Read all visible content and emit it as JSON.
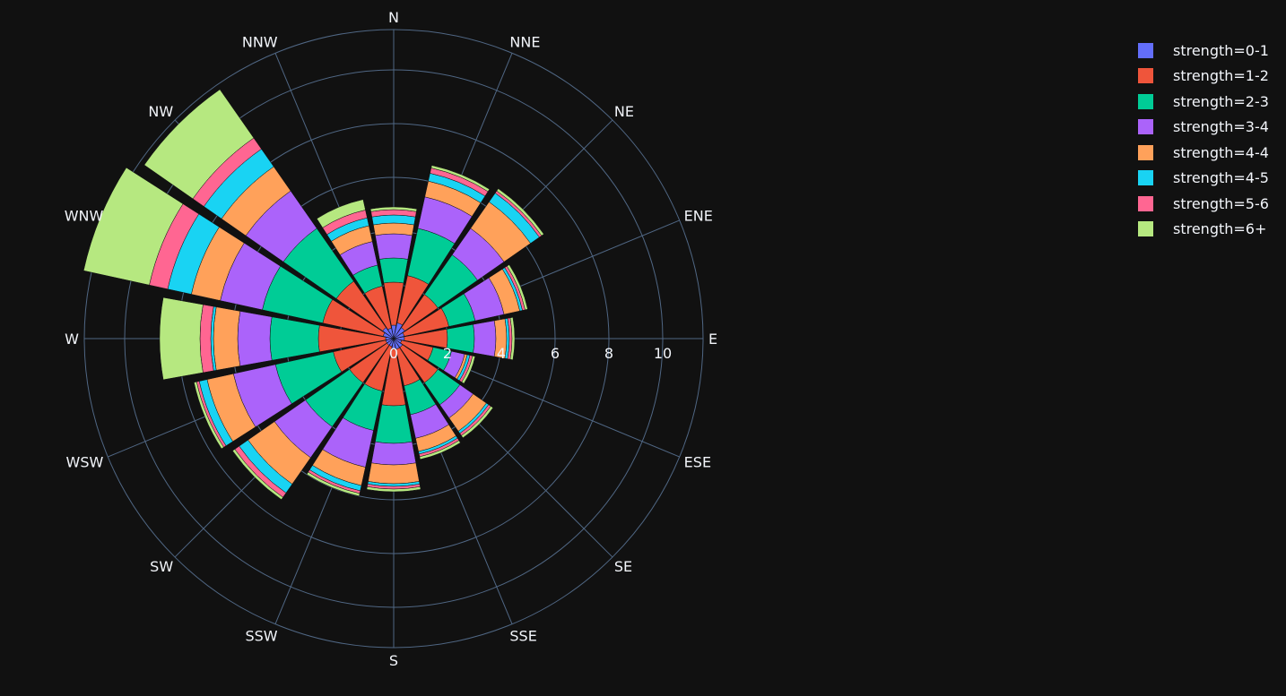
{
  "chart_data": {
    "type": "barpolar",
    "title": "",
    "directions": [
      "N",
      "NNE",
      "NE",
      "ENE",
      "E",
      "ESE",
      "SE",
      "SSE",
      "S",
      "SSW",
      "SW",
      "WSW",
      "W",
      "WNW",
      "NW",
      "NNW"
    ],
    "radial_ticks": [
      "0",
      "2",
      "4",
      "6",
      "8",
      "10"
    ],
    "radial_range": [
      0,
      11.5
    ],
    "grid": true,
    "legend_position": "top-right",
    "series": [
      {
        "name": "strength=0-1",
        "color": "#636efa",
        "values": [
          0.5,
          0.6,
          0.5,
          0.4,
          0.4,
          0.3,
          0.4,
          0.4,
          0.4,
          0.3,
          0.3,
          0.3,
          0.3,
          0.4,
          0.5,
          0.4
        ]
      },
      {
        "name": "strength=1-2",
        "color": "#ef553b",
        "values": [
          1.6,
          1.8,
          1.5,
          1.7,
          1.6,
          1.2,
          1.6,
          1.4,
          2.1,
          1.7,
          1.7,
          2.0,
          2.5,
          2.3,
          2.1,
          1.6
        ]
      },
      {
        "name": "strength=2-3",
        "color": "#00cc96",
        "values": [
          0.9,
          1.8,
          1.8,
          1.0,
          1.0,
          0.7,
          1.0,
          1.1,
          1.4,
          1.5,
          2.0,
          2.2,
          1.8,
          2.3,
          2.4,
          0.8
        ]
      },
      {
        "name": "strength=3-4",
        "color": "#ab63fa",
        "values": [
          0.9,
          1.2,
          1.2,
          1.1,
          0.8,
          0.5,
          0.6,
          0.9,
          0.8,
          1.4,
          1.4,
          1.6,
          1.2,
          1.6,
          1.7,
          0.9
        ]
      },
      {
        "name": "strength=4-4",
        "color": "#ffa15a",
        "values": [
          0.4,
          0.6,
          1.2,
          0.6,
          0.4,
          0.1,
          0.6,
          0.5,
          0.7,
          0.7,
          1.2,
          1.0,
          0.9,
          1.1,
          1.1,
          0.6
        ]
      },
      {
        "name": "strength=4-5",
        "color": "#19d3f3",
        "values": [
          0.3,
          0.3,
          0.4,
          0.1,
          0.1,
          0.1,
          0.1,
          0.1,
          0.1,
          0.2,
          0.4,
          0.3,
          0.1,
          0.9,
          0.8,
          0.3
        ]
      },
      {
        "name": "strength=5-6",
        "color": "#ff6692",
        "values": [
          0.2,
          0.2,
          0.1,
          0.1,
          0.1,
          0.1,
          0.1,
          0.1,
          0.1,
          0.1,
          0.2,
          0.1,
          0.4,
          0.7,
          0.5,
          0.3
        ]
      },
      {
        "name": "strength=6+",
        "color": "#b6e880",
        "values": [
          0.1,
          0.1,
          0.1,
          0.1,
          0.1,
          0.1,
          0.1,
          0.1,
          0.1,
          0.1,
          0.1,
          0.1,
          1.5,
          2.5,
          2.2,
          0.4
        ]
      }
    ]
  },
  "colors": {
    "background": "#111111",
    "grid": "#506784",
    "text": "#f2f5fa"
  }
}
